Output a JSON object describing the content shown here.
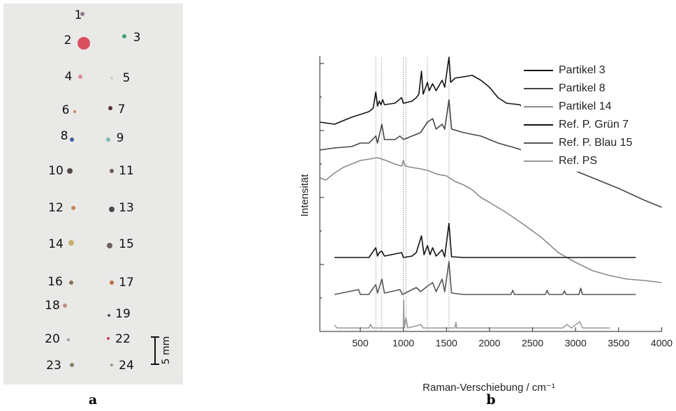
{
  "panel_a": {
    "labels": [
      "1",
      "2",
      "3",
      "4",
      "5",
      "6",
      "7",
      "8",
      "9",
      "10",
      "11",
      "12",
      "13",
      "14",
      "15",
      "16",
      "17",
      "18",
      "19",
      "20",
      "22",
      "23",
      "24"
    ],
    "scale_bar": "5 mm",
    "caption": "a"
  },
  "chart_data": {
    "type": "line",
    "caption": "b",
    "x_label": "Raman-Verschiebung / cm⁻¹",
    "y_label": "Intensität",
    "xlim": [
      30,
      4000
    ],
    "xticks": [
      500,
      1000,
      1500,
      2000,
      2500,
      3000,
      3500,
      4000
    ],
    "ylim": [
      0,
      400
    ],
    "yticks": [
      0,
      48,
      96,
      144,
      192,
      240,
      288,
      336,
      384
    ],
    "reference_lines": [
      680,
      750,
      1000,
      1030,
      1280,
      1530
    ],
    "legend": "upper right",
    "series": [
      {
        "name": "Partikel 3",
        "color": "#111111",
        "x": [
          30,
          200,
          400,
          600,
          650,
          680,
          700,
          720,
          740,
          760,
          780,
          900,
          980,
          1000,
          1100,
          1150,
          1180,
          1210,
          1230,
          1280,
          1300,
          1340,
          1380,
          1450,
          1480,
          1530,
          1550,
          1600,
          1700,
          1800,
          1900,
          2000,
          2100,
          2200,
          2350,
          2600,
          3000,
          3500,
          3950
        ],
        "values": [
          300,
          297,
          307,
          315,
          320,
          343,
          323,
          330,
          325,
          332,
          325,
          327,
          335,
          327,
          330,
          335,
          340,
          373,
          340,
          357,
          345,
          355,
          345,
          360,
          350,
          393,
          357,
          363,
          365,
          367,
          360,
          350,
          335,
          327,
          325,
          300,
          270,
          247,
          233
        ]
      },
      {
        "name": "Partikel 8",
        "color": "#444444",
        "x": [
          30,
          200,
          400,
          500,
          600,
          680,
          700,
          750,
          780,
          900,
          960,
          1000,
          1100,
          1200,
          1280,
          1340,
          1380,
          1450,
          1480,
          1530,
          1560,
          1700,
          1900,
          2100,
          2300,
          2500,
          2800,
          3200,
          3500,
          3800,
          4000
        ],
        "values": [
          260,
          263,
          265,
          270,
          270,
          280,
          270,
          297,
          275,
          275,
          280,
          275,
          280,
          285,
          300,
          305,
          290,
          297,
          290,
          332,
          290,
          285,
          280,
          270,
          263,
          255,
          240,
          220,
          205,
          188,
          178
        ]
      },
      {
        "name": "Partikel 14",
        "color": "#8a8a8a",
        "x": [
          30,
          100,
          200,
          300,
          400,
          500,
          600,
          700,
          800,
          900,
          980,
          1000,
          1020,
          1100,
          1200,
          1300,
          1400,
          1500,
          1600,
          1700,
          1800,
          1900,
          2000,
          2200,
          2400,
          2600,
          2800,
          3000,
          3200,
          3400,
          3600,
          3800,
          4000
        ],
        "values": [
          220,
          217,
          227,
          235,
          240,
          245,
          247,
          249,
          245,
          240,
          237,
          245,
          237,
          235,
          233,
          230,
          225,
          223,
          215,
          210,
          203,
          192,
          185,
          170,
          153,
          135,
          113,
          99,
          87,
          80,
          75,
          73,
          70
        ]
      },
      {
        "name": "Ref. P. Grün 7",
        "color": "#111111",
        "x": [
          200,
          600,
          680,
          700,
          720,
          750,
          780,
          980,
          1000,
          1100,
          1150,
          1210,
          1240,
          1280,
          1310,
          1340,
          1380,
          1450,
          1480,
          1530,
          1560,
          1700,
          3700
        ],
        "values": [
          106,
          106,
          120,
          108,
          113,
          115,
          108,
          113,
          106,
          108,
          113,
          137,
          110,
          123,
          110,
          120,
          108,
          117,
          107,
          155,
          107,
          106,
          106
        ]
      },
      {
        "name": "Ref. P. Blau 15",
        "color": "#555555",
        "x": [
          200,
          480,
          500,
          600,
          620,
          680,
          700,
          750,
          780,
          960,
          990,
          1150,
          1200,
          1280,
          1340,
          1380,
          1450,
          1480,
          1530,
          1560,
          1700,
          2250,
          2270,
          2290,
          2650,
          2670,
          2690,
          2850,
          2870,
          2890,
          3040,
          3060,
          3080,
          3700
        ],
        "values": [
          53,
          60,
          53,
          53,
          57,
          67,
          55,
          75,
          55,
          60,
          53,
          63,
          57,
          65,
          70,
          57,
          75,
          57,
          100,
          55,
          53,
          53,
          59,
          53,
          53,
          59,
          53,
          53,
          58,
          53,
          53,
          62,
          53,
          53
        ]
      },
      {
        "name": "Ref. PS",
        "color": "#999999",
        "x": [
          200,
          230,
          600,
          620,
          640,
          1000,
          1003,
          1010,
          1030,
          1050,
          1180,
          1200,
          1230,
          1600,
          1610,
          1620,
          2850,
          2900,
          2950,
          3050,
          3080,
          3400
        ],
        "values": [
          9,
          5,
          5,
          10,
          5,
          5,
          45,
          5,
          20,
          5,
          9,
          10,
          5,
          5,
          13,
          5,
          5,
          10,
          5,
          14,
          5,
          5
        ]
      }
    ]
  }
}
